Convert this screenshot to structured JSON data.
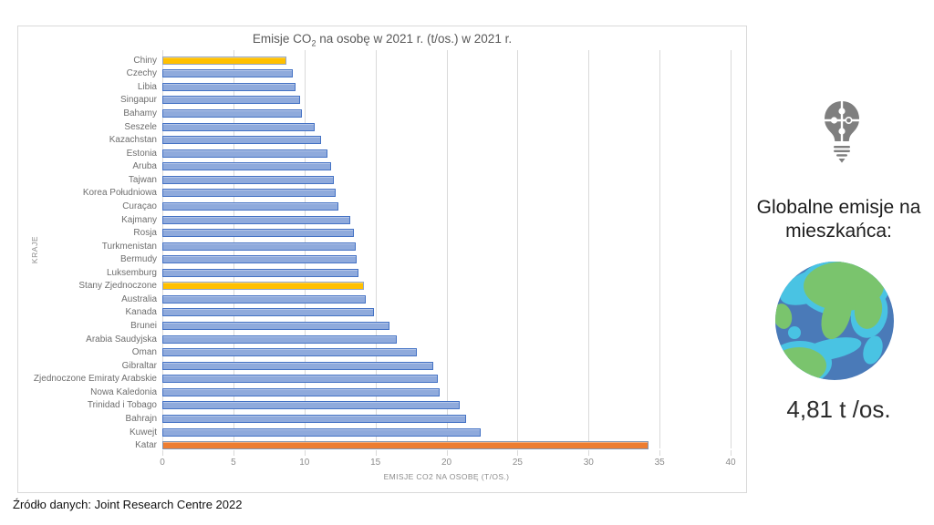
{
  "chart": {
    "title": {
      "pre": "Emisje CO",
      "sub": "2",
      "post": " na osobę w 2021 r. (t/os.) w 2021 r."
    }
  },
  "chart_data": {
    "type": "bar",
    "orientation": "horizontal",
    "title": "Emisje CO2 na osobę w 2021 r. (t/os.) w 2021 r.",
    "xlabel": "EMISJE CO2 NA OSOBĘ (T/OS.)",
    "ylabel": "KRAJE",
    "xlim": [
      0,
      40
    ],
    "xticks": [
      0,
      5,
      10,
      15,
      20,
      25,
      30,
      35,
      40
    ],
    "grid": "vertical",
    "legend": "none",
    "categories": [
      "Chiny",
      "Czechy",
      "Libia",
      "Singapur",
      "Bahamy",
      "Seszele",
      "Kazachstan",
      "Estonia",
      "Aruba",
      "Tajwan",
      "Korea Południowa",
      "Curaçao",
      "Kajmany",
      "Rosja",
      "Turkmenistan",
      "Bermudy",
      "Luksemburg",
      "Stany Zjednoczone",
      "Australia",
      "Kanada",
      "Brunei",
      "Arabia Saudyjska",
      "Oman",
      "Gibraltar",
      "Zjednoczone Emiraty Arabskie",
      "Nowa Kaledonia",
      "Trinidad i Tobago",
      "Bahrajn",
      "Kuwejt",
      "Katar"
    ],
    "values": [
      8.7,
      9.2,
      9.4,
      9.7,
      9.8,
      10.7,
      11.2,
      11.6,
      11.9,
      12.1,
      12.2,
      12.4,
      13.2,
      13.5,
      13.6,
      13.7,
      13.8,
      14.2,
      14.3,
      14.9,
      16.0,
      16.5,
      17.9,
      19.1,
      19.4,
      19.5,
      20.9,
      21.4,
      22.4,
      34.2
    ],
    "bar_styles": [
      "gold",
      "blue",
      "blue",
      "blue",
      "blue",
      "blue",
      "blue",
      "blue",
      "blue",
      "blue",
      "blue",
      "blue",
      "blue",
      "blue",
      "blue",
      "blue",
      "blue",
      "gold",
      "blue",
      "blue",
      "blue",
      "blue",
      "blue",
      "blue",
      "blue",
      "blue",
      "blue",
      "blue",
      "blue",
      "orange"
    ],
    "colors": {
      "blue": {
        "fill": "#8faadc",
        "border": "#4472c4"
      },
      "gold": {
        "fill": "#ffc000",
        "border": "#93a5c6"
      },
      "orange": {
        "fill": "#ed7d31",
        "border": "#8496b0"
      }
    }
  },
  "side_panel": {
    "bulb_icon": "puzzle-lightbulb-icon",
    "earth_icon": "earth-icon",
    "heading": "Globalne emisje na mieszkańca:",
    "value": "4,81 t /os."
  },
  "footer": {
    "source": "Źródło danych:  Joint Research Centre 2022"
  }
}
